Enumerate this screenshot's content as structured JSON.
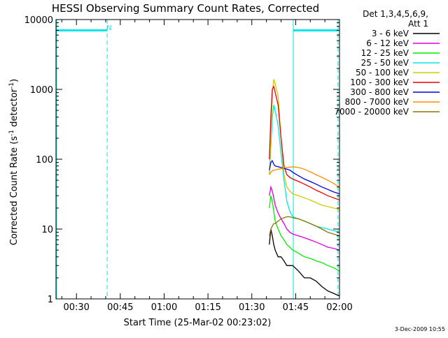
{
  "chart_data": {
    "type": "line",
    "title": "HESSI Observing Summary Count Rates, Corrected",
    "xlabel": "Start Time (25-Mar-02 00:23:02)",
    "ylabel": "Corrected Count Rate (s⁻¹ detector⁻¹)",
    "ylabel_parts": {
      "base": "Corrected Count Rate (s",
      "sup1": "-1",
      "mid": " detector",
      "sup2": "-1",
      "end": ")"
    },
    "y_scale": "log",
    "ylim": [
      1,
      10000
    ],
    "xlim_minutes": [
      23,
      120
    ],
    "x_ticks": [
      {
        "label": "00:30",
        "minute": 30
      },
      {
        "label": "00:45",
        "minute": 45
      },
      {
        "label": "01:00",
        "minute": 60
      },
      {
        "label": "01:15",
        "minute": 75
      },
      {
        "label": "01:30",
        "minute": 90
      },
      {
        "label": "01:45",
        "minute": 105
      },
      {
        "label": "02:00",
        "minute": 120
      }
    ],
    "y_ticks": [
      {
        "label": "1",
        "value": 1
      },
      {
        "label": "10",
        "value": 10
      },
      {
        "label": "100",
        "value": 100
      },
      {
        "label": "1000",
        "value": 1000
      },
      {
        "label": "10000",
        "value": 10000
      }
    ],
    "legend_header": [
      "Det 1,3,4,5,6,9,",
      "Att 1"
    ],
    "legend_position": "right",
    "timestamp": "3-Dec-2009 10:55",
    "night_marker": "N",
    "markers": {
      "color": "#00e5e5",
      "dashed_minutes": [
        40.5,
        119.5
      ],
      "solid_minutes": [
        23.2,
        104.2
      ],
      "bar_segments": [
        [
          23.2,
          40.5
        ],
        [
          104.2,
          119.5
        ]
      ],
      "bar_value": 7000
    },
    "series": [
      {
        "name": "3 - 6 keV",
        "color": "#000000",
        "x": [
          96.0,
          96.5,
          97.0,
          97.5,
          98.0,
          99.0,
          100.0,
          101.0,
          102.0,
          103.0,
          104.0,
          106.0,
          108.0,
          110.0,
          112.0,
          114.0,
          116.0,
          118.0,
          120.0
        ],
        "y": [
          6,
          10,
          8,
          6,
          5,
          4,
          4,
          3.5,
          3,
          3,
          3,
          2.5,
          2,
          2,
          1.8,
          1.5,
          1.3,
          1.2,
          1.1
        ]
      },
      {
        "name": "6 - 12 keV",
        "color": "#dd00dd",
        "x": [
          96.0,
          96.5,
          97.0,
          97.5,
          98.0,
          99.0,
          100.0,
          101.0,
          102.0,
          103.0,
          104.0,
          106.0,
          108.0,
          110.0,
          112.0,
          114.0,
          116.0,
          118.0,
          120.0
        ],
        "y": [
          30,
          40,
          35,
          28,
          22,
          17,
          14,
          12,
          10,
          9,
          8.5,
          8,
          7.5,
          7,
          6.5,
          6,
          5.5,
          5.3,
          5
        ]
      },
      {
        "name": "12 - 25 keV",
        "color": "#00ee00",
        "x": [
          96.0,
          96.5,
          97.0,
          97.5,
          98.0,
          99.0,
          100.0,
          101.0,
          102.0,
          103.0,
          104.0,
          106.0,
          108.0,
          110.0,
          112.0,
          114.0,
          116.0,
          118.0,
          120.0
        ],
        "y": [
          20,
          30,
          25,
          18,
          13,
          10,
          8,
          7,
          6,
          5.5,
          5,
          4.5,
          4,
          3.8,
          3.5,
          3.3,
          3,
          2.8,
          2.5
        ]
      },
      {
        "name": "25 - 50 keV",
        "color": "#00e5e5",
        "x": [
          96.0,
          96.5,
          97.0,
          97.5,
          98.0,
          99.0,
          100.0,
          101.0,
          102.0,
          103.0,
          104.0,
          106.0,
          108.0,
          110.0,
          112.0,
          114.0,
          116.0,
          118.0,
          120.0
        ],
        "y": [
          60,
          150,
          400,
          600,
          500,
          300,
          120,
          50,
          25,
          18,
          15,
          14,
          13,
          12,
          11,
          10.5,
          10,
          9.5,
          9
        ]
      },
      {
        "name": "50 - 100 keV",
        "color": "#d4c800",
        "x": [
          96.0,
          96.5,
          97.0,
          97.5,
          98.0,
          99.0,
          100.0,
          101.0,
          102.0,
          103.0,
          104.0,
          106.0,
          108.0,
          110.0,
          112.0,
          114.0,
          116.0,
          118.0,
          120.0
        ],
        "y": [
          60,
          200,
          900,
          1400,
          1200,
          800,
          200,
          60,
          40,
          35,
          32,
          30,
          28,
          26,
          24,
          22,
          21,
          20,
          19
        ]
      },
      {
        "name": "100 - 300 keV",
        "color": "#ee0000",
        "x": [
          96.0,
          96.5,
          97.0,
          97.5,
          98.0,
          99.0,
          100.0,
          101.0,
          102.0,
          103.0,
          104.0,
          106.0,
          108.0,
          110.0,
          112.0,
          114.0,
          116.0,
          118.0,
          120.0
        ],
        "y": [
          100,
          400,
          1000,
          1100,
          900,
          600,
          200,
          80,
          60,
          55,
          52,
          48,
          44,
          40,
          36,
          33,
          30,
          28,
          26
        ]
      },
      {
        "name": "300 - 800 keV",
        "color": "#0000dd",
        "x": [
          96.0,
          96.5,
          97.0,
          97.5,
          98.0,
          99.0,
          100.0,
          101.0,
          102.0,
          103.0,
          104.0,
          106.0,
          108.0,
          110.0,
          112.0,
          114.0,
          116.0,
          118.0,
          120.0
        ],
        "y": [
          70,
          90,
          95,
          85,
          80,
          78,
          76,
          74,
          72,
          70,
          65,
          58,
          52,
          48,
          44,
          40,
          37,
          34,
          32
        ]
      },
      {
        "name": "800 - 7000 keV",
        "color": "#ff8c00",
        "x": [
          96.0,
          96.5,
          97.0,
          97.5,
          98.0,
          99.0,
          100.0,
          101.0,
          102.0,
          103.0,
          104.0,
          106.0,
          108.0,
          110.0,
          112.0,
          114.0,
          116.0,
          118.0,
          120.0
        ],
        "y": [
          60,
          65,
          68,
          70,
          70,
          72,
          73,
          75,
          76,
          77,
          78,
          76,
          72,
          66,
          60,
          55,
          50,
          45,
          40
        ]
      },
      {
        "name": "7000 - 20000 keV",
        "color": "#8b7500",
        "x": [
          96.0,
          96.5,
          97.0,
          97.5,
          98.0,
          99.0,
          100.0,
          101.0,
          102.0,
          103.0,
          104.0,
          106.0,
          108.0,
          110.0,
          112.0,
          114.0,
          116.0,
          118.0,
          120.0
        ],
        "y": [
          8,
          10,
          11,
          12,
          12,
          13,
          14,
          14.5,
          15,
          15,
          14.5,
          14,
          13,
          12,
          11,
          10,
          9,
          8.5,
          8
        ]
      }
    ]
  }
}
